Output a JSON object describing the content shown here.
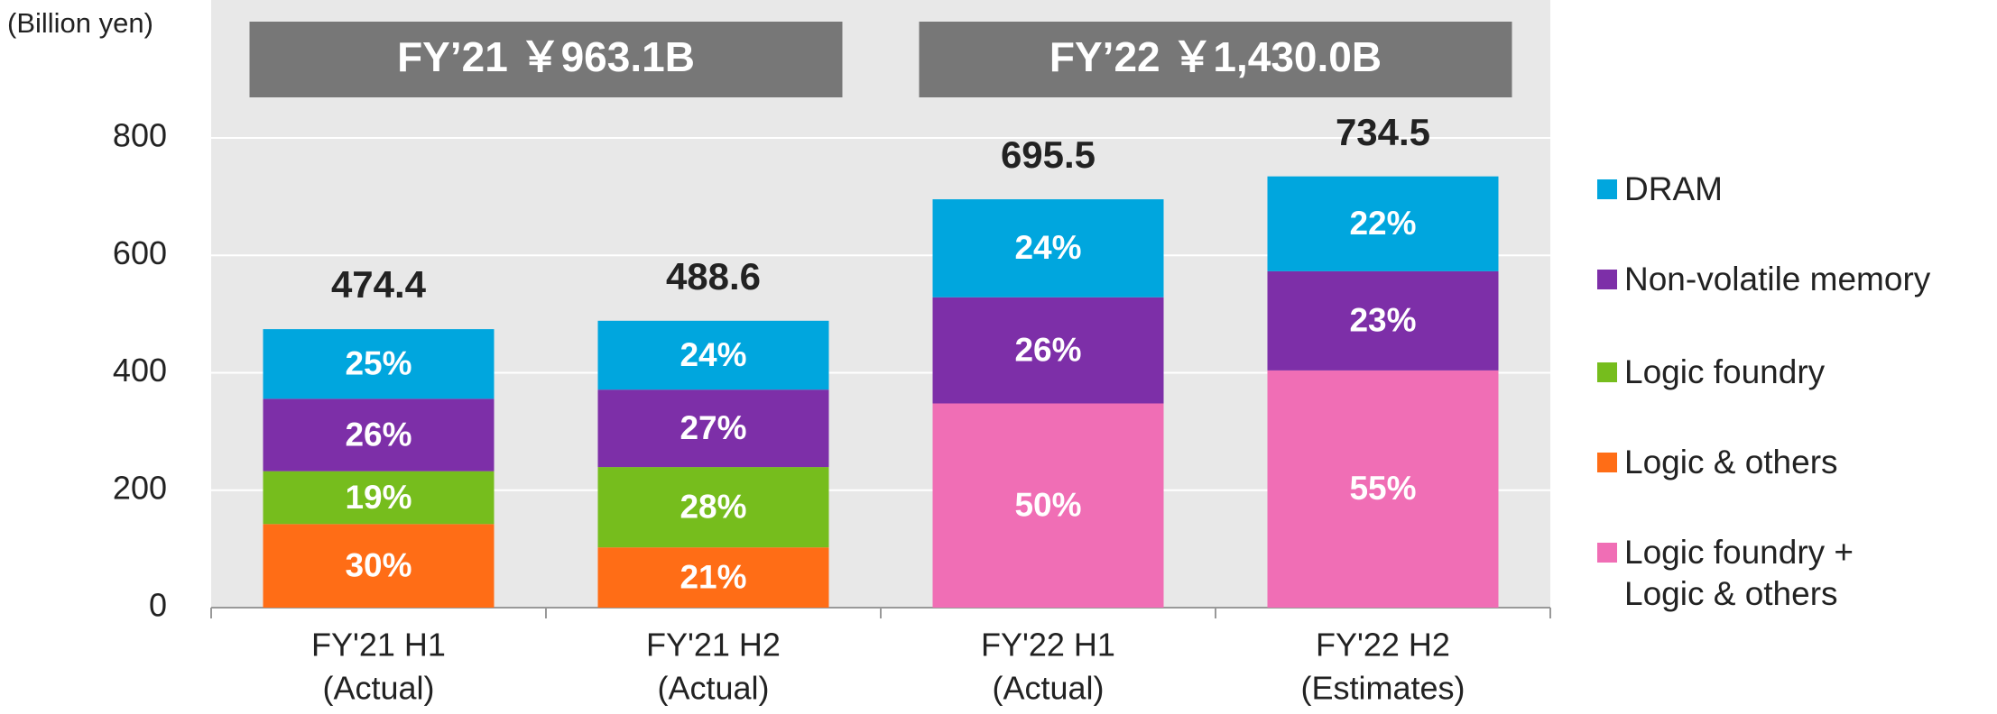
{
  "chart_data": {
    "type": "stacked-bar",
    "unit_label": "(Billion yen)",
    "headers": [
      {
        "text": "FY’21 ￥963.1B",
        "categories": [
          0,
          1
        ]
      },
      {
        "text": "FY’22 ￥1,430.0B",
        "categories": [
          2,
          3
        ]
      }
    ],
    "categories": [
      [
        "FY'21 H1",
        "(Actual)"
      ],
      [
        "FY'21 H2",
        "(Actual)"
      ],
      [
        "FY'22 H1",
        "(Actual)"
      ],
      [
        "FY'22 H2",
        "(Estimates)"
      ]
    ],
    "series": [
      {
        "name": "Logic & others",
        "color": "#ff6d16",
        "values": [
          142.3,
          102.6,
          null,
          null
        ],
        "share_labels": [
          "30%",
          "21%",
          null,
          null
        ]
      },
      {
        "name": "Logic foundry",
        "color": "#76bd1d",
        "values": [
          90.1,
          136.8,
          null,
          null
        ],
        "share_labels": [
          "19%",
          "28%",
          null,
          null
        ]
      },
      {
        "name": "Logic foundry + Logic & others",
        "color": "#f06eb5",
        "values": [
          null,
          null,
          347.8,
          404.0
        ],
        "share_labels": [
          null,
          null,
          "50%",
          "55%"
        ]
      },
      {
        "name": "Non-volatile memory",
        "color": "#7d2fa8",
        "values": [
          123.3,
          131.9,
          180.8,
          168.9
        ],
        "share_labels": [
          "26%",
          "27%",
          "26%",
          "23%"
        ]
      },
      {
        "name": "DRAM",
        "color": "#00a6de",
        "values": [
          118.6,
          117.3,
          166.9,
          161.6
        ],
        "share_labels": [
          "25%",
          "24%",
          "24%",
          "22%"
        ]
      }
    ],
    "legend_order": [
      4,
      3,
      1,
      0,
      2
    ],
    "totals": [
      474.4,
      488.6,
      695.5,
      734.5
    ],
    "ylim": [
      0,
      800
    ],
    "yticks": [
      0,
      200,
      400,
      600,
      800
    ],
    "grid": true
  }
}
